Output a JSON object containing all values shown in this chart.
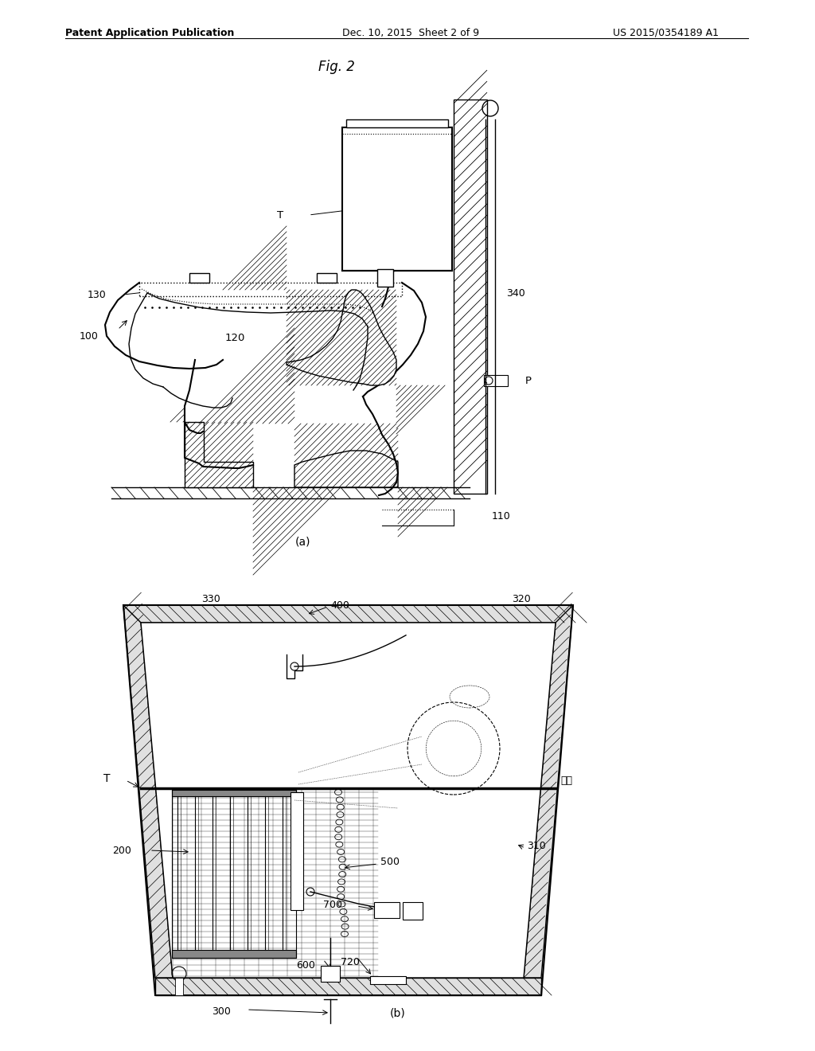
{
  "bg_color": "#ffffff",
  "line_color": "#000000",
  "header_left": "Patent Application Publication",
  "header_middle": "Dec. 10, 2015  Sheet 2 of 9",
  "header_right": "US 2015/0354189 A1",
  "fig_title": "Fig. 2",
  "label_a": "(a)",
  "label_b": "(b)"
}
